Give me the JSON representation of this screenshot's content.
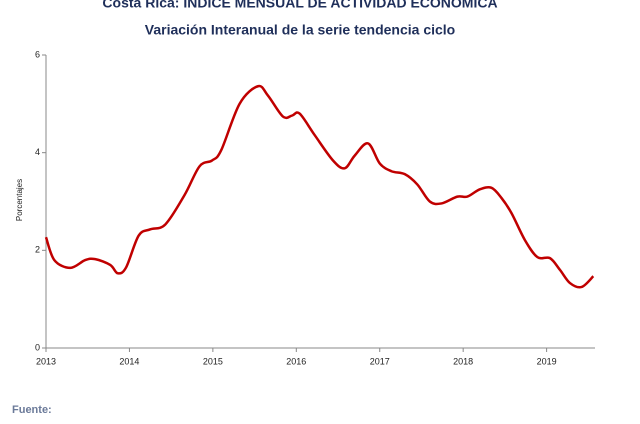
{
  "chart_data": {
    "type": "line",
    "title": "Costa Rica: INDICE MENSUAL DE ACTIVIDAD ECONOMICA",
    "subtitle": "Variación Interanual de la serie tendencia ciclo",
    "y_label": "Porcentajes",
    "source": "Fuente:",
    "x": [
      2013.0,
      2013.1,
      2013.29,
      2013.47,
      2013.59,
      2013.77,
      2013.86,
      2013.96,
      2014.11,
      2014.25,
      2014.43,
      2014.66,
      2014.84,
      2014.99,
      2015.1,
      2015.32,
      2015.54,
      2015.66,
      2015.84,
      2015.95,
      2016.04,
      2016.22,
      2016.44,
      2016.58,
      2016.7,
      2016.86,
      2017.0,
      2017.14,
      2017.3,
      2017.45,
      2017.6,
      2017.74,
      2017.93,
      2018.05,
      2018.2,
      2018.34,
      2018.46,
      2018.58,
      2018.74,
      2018.89,
      2019.04,
      2019.16,
      2019.28,
      2019.42,
      2019.56
    ],
    "series": [
      {
        "name": "Variación interanual",
        "color": "#c00000",
        "values": [
          2.27,
          1.8,
          1.64,
          1.8,
          1.82,
          1.7,
          1.53,
          1.65,
          2.3,
          2.43,
          2.53,
          3.13,
          3.72,
          3.84,
          4.05,
          5.0,
          5.36,
          5.17,
          4.74,
          4.76,
          4.8,
          4.36,
          3.84,
          3.68,
          3.94,
          4.19,
          3.78,
          3.62,
          3.56,
          3.35,
          3.0,
          2.96,
          3.1,
          3.1,
          3.25,
          3.28,
          3.07,
          2.76,
          2.21,
          1.86,
          1.84,
          1.6,
          1.33,
          1.25,
          1.47
        ]
      }
    ],
    "xlim": [
      2013,
      2019.58
    ],
    "xticks": [
      2013,
      2014,
      2015,
      2016,
      2017,
      2018,
      2019
    ],
    "ylim": [
      0,
      6
    ],
    "yticks": [
      0,
      2,
      4,
      6
    ],
    "grid": false
  }
}
